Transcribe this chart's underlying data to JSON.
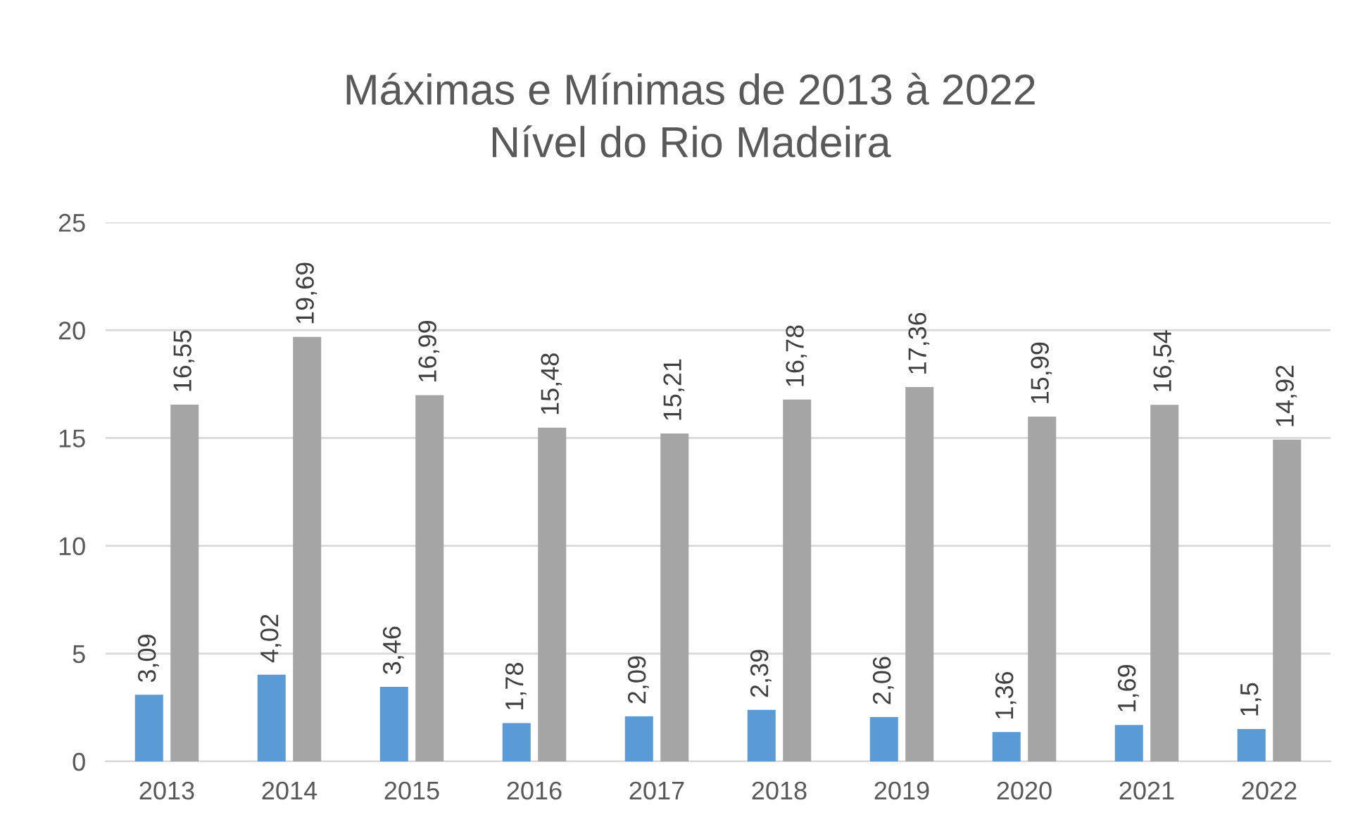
{
  "chart_data": {
    "type": "bar",
    "title": "Máximas e Mínimas de 2013 à 2022\nNível do Rio Madeira",
    "categories": [
      "2013",
      "2014",
      "2015",
      "2016",
      "2017",
      "2018",
      "2019",
      "2020",
      "2021",
      "2022"
    ],
    "series": [
      {
        "color": "#5b9bd5",
        "values": [
          3.09,
          4.02,
          3.46,
          1.78,
          2.09,
          2.39,
          2.06,
          1.36,
          1.69,
          1.5
        ],
        "value_labels": [
          "3,09",
          "4,02",
          "3,46",
          "1,78",
          "2,09",
          "2,39",
          "2,06",
          "1,36",
          "1,69",
          "1,5"
        ]
      },
      {
        "color": "#a5a5a5",
        "values": [
          16.55,
          19.69,
          16.99,
          15.48,
          15.21,
          16.78,
          17.36,
          15.99,
          16.54,
          14.92
        ],
        "value_labels": [
          "16,55",
          "19,69",
          "16,99",
          "15,48",
          "15,21",
          "16,78",
          "17,36",
          "15,99",
          "16,54",
          "14,92"
        ]
      }
    ],
    "ylim": [
      0,
      25
    ],
    "yticks": [
      0,
      5,
      10,
      15,
      20,
      25
    ],
    "grid": "y",
    "legend": false
  }
}
